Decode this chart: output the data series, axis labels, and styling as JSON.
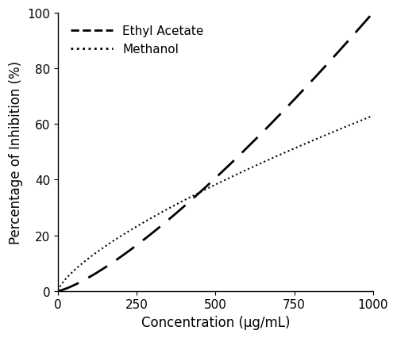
{
  "title": "",
  "xlabel": "Concentration (µg/mL)",
  "ylabel": "Percentage of Inhibition (%)",
  "xlim": [
    0,
    1000
  ],
  "ylim": [
    0,
    100
  ],
  "xticks": [
    0,
    250,
    500,
    750,
    1000
  ],
  "yticks": [
    0,
    20,
    40,
    60,
    80,
    100
  ],
  "ethyl_acetate_label": "Ethyl Acetate",
  "methanol_label": "Methanol",
  "background_color": "#ffffff",
  "line_color": "#000000",
  "ethyl_a": 100.0,
  "ethyl_b": 1.3,
  "methanol_a": 63.0,
  "methanol_b": 0.72,
  "figsize": [
    5.0,
    4.27
  ],
  "dpi": 100
}
